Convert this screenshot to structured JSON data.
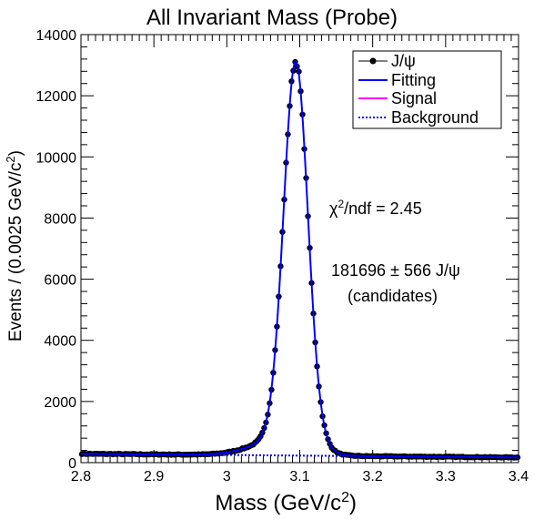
{
  "chart_data": {
    "type": "scatter",
    "title": "All Invariant Mass (Probe)",
    "xlabel": "Mass (GeV/c",
    "xlabel_sup": "2",
    "xlabel_end": ")",
    "ylabel": "Events / (0.0025 GeV/c",
    "ylabel_sup": "2",
    "ylabel_end": ")",
    "xlim": [
      2.8,
      3.4
    ],
    "ylim": [
      0,
      14000
    ],
    "x_major_ticks": [
      2.8,
      2.9,
      3.0,
      3.1,
      3.2,
      3.3,
      3.4
    ],
    "x_tick_labels": [
      "2.8",
      "2.9",
      "3",
      "3.1",
      "3.2",
      "3.3",
      "3.4"
    ],
    "y_major_ticks": [
      0,
      2000,
      4000,
      6000,
      8000,
      10000,
      12000,
      14000
    ],
    "y_tick_labels": [
      "0",
      "2000",
      "4000",
      "6000",
      "8000",
      "10000",
      "12000",
      "14000"
    ],
    "grid": false,
    "legend_position": "top-right",
    "legend": [
      {
        "label": "J/ψ",
        "style": "marker-line",
        "color": "#000000"
      },
      {
        "label": "Fitting",
        "style": "solid",
        "color": "#0000ff"
      },
      {
        "label": "Signal",
        "style": "solid",
        "color": "#ff00ff"
      },
      {
        "label": "Background",
        "style": "dotted",
        "color": "#0000ff"
      }
    ],
    "annotations": {
      "chi2_prefix": "χ",
      "chi2_sup": "2",
      "chi2_text": "/ndf = 2.45",
      "yield_line1": "181696 ± 566 J/ψ",
      "yield_line2": "(candidates)"
    },
    "fit_model": {
      "signal_mean": 3.0945,
      "signal_amplitude": 12890,
      "core_sigma": 0.0165,
      "tail_sigma": 0.045,
      "tail_fraction": 0.06,
      "background_start": 290,
      "background_end": 170
    },
    "points_x_range": [
      2.8,
      3.4
    ],
    "points_bin_width": 0.0025
  }
}
